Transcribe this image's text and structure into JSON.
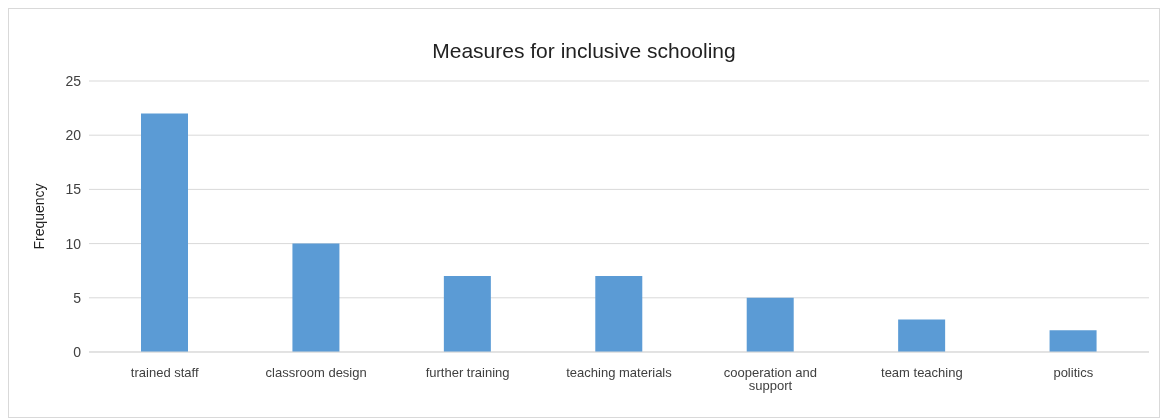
{
  "chart_data": {
    "type": "bar",
    "title": "Measures for inclusive schooling",
    "ylabel": "Frequency",
    "categories": [
      "trained staff",
      "classroom design",
      "further training",
      "teaching materials",
      "cooperation and support",
      "team teaching",
      "politics"
    ],
    "values": [
      22,
      10,
      7,
      7,
      5,
      3,
      2
    ],
    "color": "#5b9bd5",
    "ylim": [
      0,
      25
    ],
    "yticks": [
      0,
      5,
      10,
      15,
      20,
      25
    ],
    "grid": "y",
    "legend": false
  }
}
